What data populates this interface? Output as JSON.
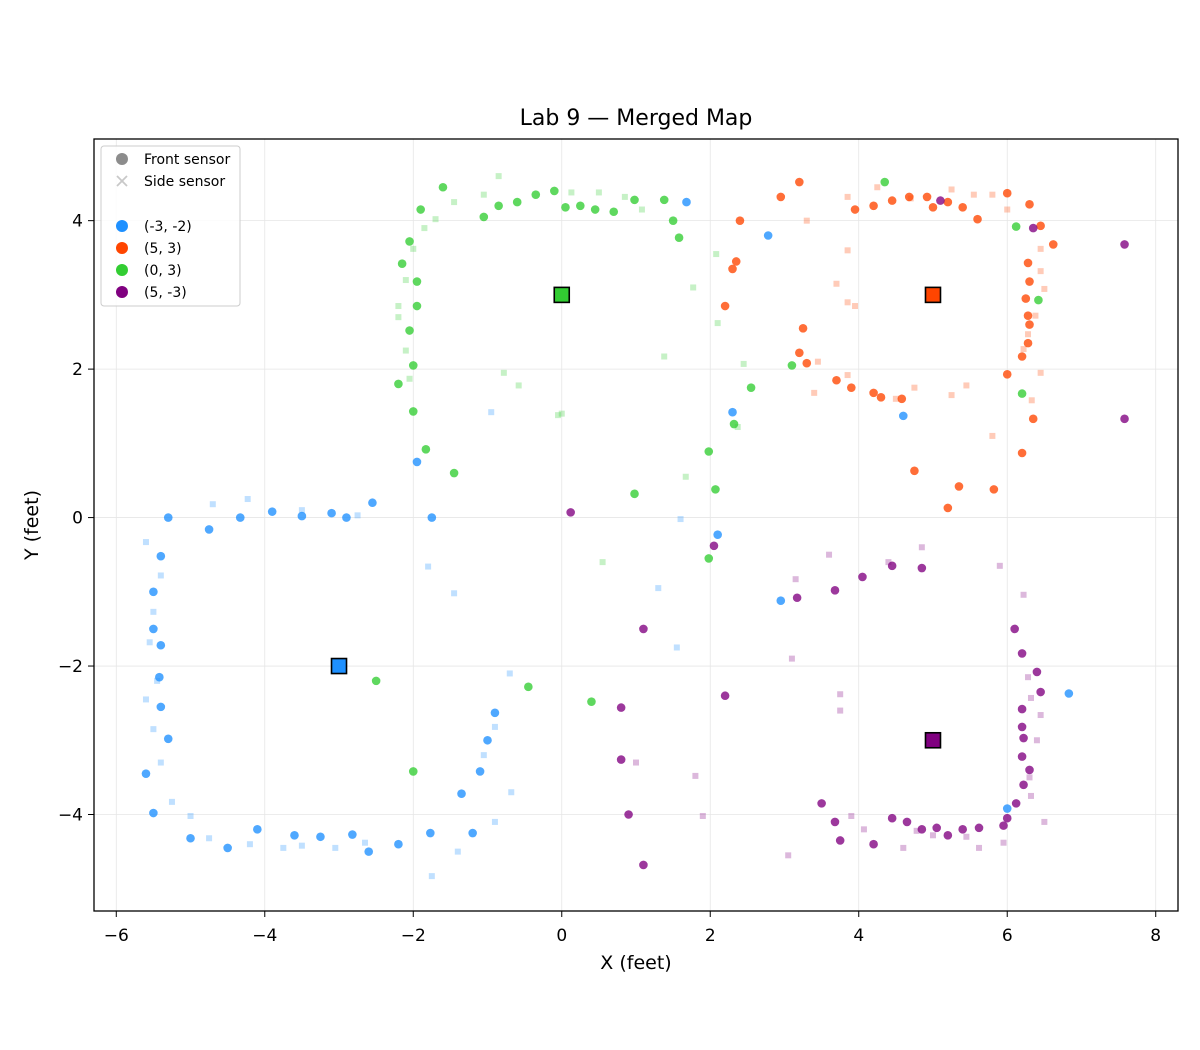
{
  "chart_data": {
    "type": "scatter",
    "title": "Lab 9 — Merged Map",
    "xlabel": "X (feet)",
    "ylabel": "Y (feet)",
    "xlim": [
      -6.3,
      8.3
    ],
    "ylim": [
      -5.3,
      5.1
    ],
    "xticks": [
      -6,
      -4,
      -2,
      0,
      2,
      4,
      6,
      8
    ],
    "xtick_labels": [
      "−6",
      "−4",
      "−2",
      "0",
      "2",
      "4",
      "6",
      "8"
    ],
    "yticks": [
      -4,
      -2,
      0,
      2,
      4
    ],
    "ytick_labels": [
      "−4",
      "−2",
      "0",
      "2",
      "4"
    ],
    "grid": true,
    "legend": {
      "placement": "top-left",
      "marker_entries": [
        {
          "label": "Front sensor",
          "marker": "circle",
          "color": "#8c8c8c"
        },
        {
          "label": "Side sensor",
          "marker": "x",
          "color": "#c8c8c8"
        }
      ],
      "series_entries": [
        {
          "label": "(-3, -2)",
          "color": "#1e90ff"
        },
        {
          "label": "(5, 3)",
          "color": "#ff4500"
        },
        {
          "label": "(0, 3)",
          "color": "#32cd32"
        },
        {
          "label": "(5, -3)",
          "color": "#800080"
        }
      ]
    },
    "series": [
      {
        "name": "(-3, -2)",
        "color": "#1e90ff",
        "origin": [
          -3,
          -2
        ],
        "front": [
          [
            -5.3,
            0.0
          ],
          [
            -4.75,
            -0.16
          ],
          [
            -4.33,
            0.0
          ],
          [
            -3.9,
            0.08
          ],
          [
            -3.5,
            0.02
          ],
          [
            -3.1,
            0.06
          ],
          [
            -2.9,
            0.0
          ],
          [
            -2.55,
            0.2
          ],
          [
            -1.75,
            0.0
          ],
          [
            -1.95,
            0.75
          ],
          [
            -5.4,
            -0.52
          ],
          [
            -5.5,
            -1.0
          ],
          [
            -5.5,
            -1.5
          ],
          [
            -5.4,
            -1.72
          ],
          [
            -5.42,
            -2.15
          ],
          [
            -5.4,
            -2.55
          ],
          [
            -5.3,
            -2.98
          ],
          [
            -5.6,
            -3.45
          ],
          [
            -5.5,
            -3.98
          ],
          [
            -5.0,
            -4.32
          ],
          [
            -4.5,
            -4.45
          ],
          [
            -4.1,
            -4.2
          ],
          [
            -3.6,
            -4.28
          ],
          [
            -3.25,
            -4.3
          ],
          [
            -2.82,
            -4.27
          ],
          [
            -2.6,
            -4.5
          ],
          [
            -2.2,
            -4.4
          ],
          [
            -1.77,
            -4.25
          ],
          [
            -1.2,
            -4.25
          ],
          [
            -1.35,
            -3.72
          ],
          [
            -1.1,
            -3.42
          ],
          [
            -1.0,
            -3.0
          ],
          [
            -0.9,
            -2.63
          ],
          [
            2.1,
            -0.23
          ],
          [
            2.95,
            -1.12
          ],
          [
            2.3,
            1.42
          ],
          [
            2.78,
            3.8
          ],
          [
            1.68,
            4.25
          ],
          [
            4.6,
            1.37
          ],
          [
            6.0,
            -3.92
          ],
          [
            6.83,
            -2.37
          ]
        ],
        "side": [
          [
            -5.6,
            -0.33
          ],
          [
            -5.4,
            -0.78
          ],
          [
            -5.5,
            -1.27
          ],
          [
            -5.55,
            -1.68
          ],
          [
            -5.45,
            -2.2
          ],
          [
            -5.6,
            -2.45
          ],
          [
            -5.5,
            -2.85
          ],
          [
            -5.4,
            -3.3
          ],
          [
            -5.25,
            -3.83
          ],
          [
            -5.0,
            -4.02
          ],
          [
            -4.75,
            -4.32
          ],
          [
            -4.2,
            -4.4
          ],
          [
            -3.75,
            -4.45
          ],
          [
            -3.5,
            -4.42
          ],
          [
            -3.05,
            -4.45
          ],
          [
            -2.65,
            -4.38
          ],
          [
            -1.75,
            -4.83
          ],
          [
            -1.4,
            -4.5
          ],
          [
            -0.9,
            -4.1
          ],
          [
            -0.9,
            -2.82
          ],
          [
            -1.05,
            -3.2
          ],
          [
            -0.68,
            -3.7
          ],
          [
            -0.7,
            -2.1
          ],
          [
            -1.45,
            -1.02
          ],
          [
            -1.8,
            -0.66
          ],
          [
            -4.7,
            0.18
          ],
          [
            -4.23,
            0.25
          ],
          [
            -3.5,
            0.1
          ],
          [
            -2.75,
            0.03
          ],
          [
            -0.95,
            1.42
          ],
          [
            1.55,
            -1.75
          ],
          [
            1.3,
            -0.95
          ],
          [
            1.6,
            -0.02
          ]
        ]
      },
      {
        "name": "(5, 3)",
        "color": "#ff4500",
        "origin": [
          5,
          3
        ],
        "front": [
          [
            2.95,
            4.32
          ],
          [
            3.2,
            4.52
          ],
          [
            2.4,
            4.0
          ],
          [
            3.95,
            4.15
          ],
          [
            4.2,
            4.2
          ],
          [
            4.45,
            4.27
          ],
          [
            4.68,
            4.32
          ],
          [
            4.92,
            4.32
          ],
          [
            5.0,
            4.18
          ],
          [
            5.2,
            4.25
          ],
          [
            5.4,
            4.18
          ],
          [
            5.6,
            4.02
          ],
          [
            6.0,
            4.37
          ],
          [
            6.3,
            4.22
          ],
          [
            6.45,
            3.93
          ],
          [
            6.62,
            3.68
          ],
          [
            6.28,
            3.43
          ],
          [
            6.3,
            3.18
          ],
          [
            6.25,
            2.95
          ],
          [
            6.28,
            2.72
          ],
          [
            6.3,
            2.6
          ],
          [
            6.28,
            2.35
          ],
          [
            6.2,
            2.17
          ],
          [
            6.0,
            1.93
          ],
          [
            6.35,
            1.33
          ],
          [
            6.2,
            0.87
          ],
          [
            5.82,
            0.38
          ],
          [
            5.35,
            0.42
          ],
          [
            5.2,
            0.13
          ],
          [
            4.75,
            0.63
          ],
          [
            4.58,
            1.6
          ],
          [
            4.3,
            1.62
          ],
          [
            4.2,
            1.68
          ],
          [
            3.9,
            1.75
          ],
          [
            3.7,
            1.85
          ],
          [
            3.3,
            2.08
          ],
          [
            3.2,
            2.22
          ],
          [
            3.25,
            2.55
          ],
          [
            2.2,
            2.85
          ],
          [
            2.35,
            3.45
          ],
          [
            2.3,
            3.35
          ]
        ],
        "side": [
          [
            3.3,
            4.0
          ],
          [
            3.85,
            4.32
          ],
          [
            4.25,
            4.45
          ],
          [
            4.7,
            4.3
          ],
          [
            5.25,
            4.42
          ],
          [
            5.55,
            4.35
          ],
          [
            5.8,
            4.35
          ],
          [
            6.0,
            4.15
          ],
          [
            6.45,
            3.62
          ],
          [
            6.45,
            3.32
          ],
          [
            6.5,
            3.08
          ],
          [
            6.38,
            2.72
          ],
          [
            6.28,
            2.47
          ],
          [
            6.22,
            2.27
          ],
          [
            6.45,
            1.95
          ],
          [
            6.33,
            1.58
          ],
          [
            5.8,
            1.1
          ],
          [
            5.25,
            1.65
          ],
          [
            5.45,
            1.78
          ],
          [
            4.75,
            1.75
          ],
          [
            4.5,
            1.6
          ],
          [
            3.85,
            1.92
          ],
          [
            3.4,
            1.68
          ],
          [
            3.45,
            2.1
          ],
          [
            3.85,
            2.9
          ],
          [
            3.95,
            2.85
          ],
          [
            3.85,
            3.6
          ],
          [
            3.7,
            3.15
          ]
        ]
      },
      {
        "name": "(0, 3)",
        "color": "#32cd32",
        "origin": [
          0,
          3
        ],
        "front": [
          [
            -1.6,
            4.45
          ],
          [
            -1.9,
            4.15
          ],
          [
            -1.05,
            4.05
          ],
          [
            -0.85,
            4.2
          ],
          [
            -0.6,
            4.25
          ],
          [
            -0.35,
            4.35
          ],
          [
            -0.1,
            4.4
          ],
          [
            0.05,
            4.18
          ],
          [
            0.25,
            4.2
          ],
          [
            0.45,
            4.15
          ],
          [
            0.7,
            4.12
          ],
          [
            0.98,
            4.28
          ],
          [
            1.38,
            4.28
          ],
          [
            1.5,
            4.0
          ],
          [
            1.58,
            3.77
          ],
          [
            4.35,
            4.52
          ],
          [
            6.12,
            3.92
          ],
          [
            6.42,
            2.93
          ],
          [
            -2.05,
            3.72
          ],
          [
            -2.15,
            3.42
          ],
          [
            -1.95,
            3.18
          ],
          [
            -1.95,
            2.85
          ],
          [
            -2.05,
            2.52
          ],
          [
            -2.0,
            2.05
          ],
          [
            -2.2,
            1.8
          ],
          [
            -2.0,
            1.43
          ],
          [
            -1.83,
            0.92
          ],
          [
            -1.45,
            0.6
          ],
          [
            -2.0,
            -3.42
          ],
          [
            -2.5,
            -2.2
          ],
          [
            -0.45,
            -2.28
          ],
          [
            0.4,
            -2.48
          ],
          [
            0.98,
            0.32
          ],
          [
            2.07,
            0.38
          ],
          [
            1.98,
            0.89
          ],
          [
            2.32,
            1.26
          ],
          [
            2.55,
            1.75
          ],
          [
            3.1,
            2.05
          ],
          [
            6.2,
            1.67
          ],
          [
            1.98,
            -0.55
          ]
        ],
        "side": [
          [
            -0.85,
            4.6
          ],
          [
            -1.05,
            4.35
          ],
          [
            -1.45,
            4.25
          ],
          [
            -1.7,
            4.02
          ],
          [
            -1.85,
            3.9
          ],
          [
            -2.0,
            3.62
          ],
          [
            -2.1,
            3.2
          ],
          [
            -2.2,
            2.85
          ],
          [
            -2.2,
            2.7
          ],
          [
            -2.1,
            2.25
          ],
          [
            -2.05,
            1.87
          ],
          [
            0.13,
            4.38
          ],
          [
            0.5,
            4.38
          ],
          [
            0.85,
            4.32
          ],
          [
            1.08,
            4.15
          ],
          [
            1.77,
            3.1
          ],
          [
            2.08,
            3.55
          ],
          [
            2.1,
            2.62
          ],
          [
            1.38,
            2.17
          ],
          [
            2.45,
            2.07
          ],
          [
            -0.78,
            1.95
          ],
          [
            -0.58,
            1.78
          ],
          [
            0.0,
            1.4
          ],
          [
            1.67,
            0.55
          ],
          [
            2.37,
            1.22
          ],
          [
            -0.05,
            1.38
          ],
          [
            0.55,
            -0.6
          ]
        ]
      },
      {
        "name": "(5, -3)",
        "color": "#800080",
        "origin": [
          5,
          -3
        ],
        "front": [
          [
            0.12,
            0.07
          ],
          [
            1.1,
            -1.5
          ],
          [
            2.05,
            -0.38
          ],
          [
            3.17,
            -1.08
          ],
          [
            3.68,
            -0.98
          ],
          [
            4.05,
            -0.8
          ],
          [
            4.45,
            -0.65
          ],
          [
            4.85,
            -0.68
          ],
          [
            6.1,
            -1.5
          ],
          [
            6.2,
            -1.83
          ],
          [
            6.4,
            -2.08
          ],
          [
            6.45,
            -2.35
          ],
          [
            6.2,
            -2.58
          ],
          [
            6.2,
            -2.82
          ],
          [
            6.22,
            -2.97
          ],
          [
            6.2,
            -3.22
          ],
          [
            6.3,
            -3.4
          ],
          [
            6.22,
            -3.6
          ],
          [
            6.12,
            -3.85
          ],
          [
            6.0,
            -4.05
          ],
          [
            5.95,
            -4.15
          ],
          [
            5.62,
            -4.18
          ],
          [
            5.4,
            -4.2
          ],
          [
            5.2,
            -4.28
          ],
          [
            5.05,
            -4.18
          ],
          [
            4.85,
            -4.2
          ],
          [
            4.65,
            -4.1
          ],
          [
            4.45,
            -4.05
          ],
          [
            4.2,
            -4.4
          ],
          [
            3.75,
            -4.35
          ],
          [
            3.68,
            -4.1
          ],
          [
            3.5,
            -3.85
          ],
          [
            2.2,
            -2.4
          ],
          [
            0.8,
            -2.56
          ],
          [
            0.8,
            -3.26
          ],
          [
            0.9,
            -4.0
          ],
          [
            1.1,
            -4.68
          ],
          [
            5.1,
            4.27
          ],
          [
            6.35,
            3.9
          ],
          [
            7.58,
            3.68
          ],
          [
            7.58,
            1.33
          ]
        ],
        "side": [
          [
            3.15,
            -0.83
          ],
          [
            3.6,
            -0.5
          ],
          [
            4.4,
            -0.6
          ],
          [
            4.85,
            -0.4
          ],
          [
            5.9,
            -0.65
          ],
          [
            6.22,
            -1.04
          ],
          [
            6.28,
            -2.15
          ],
          [
            6.32,
            -2.43
          ],
          [
            6.45,
            -2.66
          ],
          [
            6.4,
            -3.0
          ],
          [
            6.3,
            -3.5
          ],
          [
            6.32,
            -3.75
          ],
          [
            6.5,
            -4.1
          ],
          [
            5.95,
            -4.38
          ],
          [
            5.62,
            -4.45
          ],
          [
            5.45,
            -4.3
          ],
          [
            5.0,
            -4.28
          ],
          [
            4.78,
            -4.22
          ],
          [
            4.6,
            -4.45
          ],
          [
            4.07,
            -4.2
          ],
          [
            3.9,
            -4.02
          ],
          [
            3.05,
            -4.55
          ],
          [
            3.1,
            -1.9
          ],
          [
            3.75,
            -2.38
          ],
          [
            3.75,
            -2.6
          ],
          [
            1.8,
            -3.48
          ],
          [
            1.9,
            -4.02
          ],
          [
            1.0,
            -3.3
          ]
        ]
      }
    ]
  }
}
